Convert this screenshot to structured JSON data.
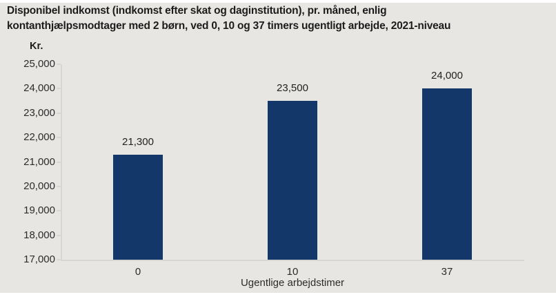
{
  "header": {
    "title_lines": [
      "Disponibel indkomst (indkomst efter skat og daginstitution), pr. måned, enlig",
      "kontanthjælpsmodtager med 2 børn, ved 0, 10 og 37 timers ugentligt arbejde, 2021-niveau"
    ]
  },
  "chart_data": {
    "type": "bar",
    "title": "Disponibel indkomst (indkomst efter skat og daginstitution), pr. måned, enlig kontanthjælpsmodtager med 2 børn, ved 0, 10 og 37 timers ugentligt arbejde, 2021-niveau",
    "unit_label": "Kr.",
    "categories": [
      "0",
      "10",
      "37"
    ],
    "values": [
      21300,
      23500,
      24000
    ],
    "value_labels": [
      "21,300",
      "23,500",
      "24,000"
    ],
    "xlabel": "Ugentlige arbejdstimer",
    "ylabel": "Kr.",
    "ylim": [
      17000,
      25000
    ],
    "ytick_step": 1000,
    "ytick_labels": [
      "17,000",
      "18,000",
      "19,000",
      "20,000",
      "21,000",
      "22,000",
      "23,000",
      "24,000",
      "25,000"
    ],
    "grid": false,
    "legend": null,
    "bar_color": "#143769",
    "background_color": "#e7e6e3",
    "axis_color": "#d8d7d4"
  }
}
